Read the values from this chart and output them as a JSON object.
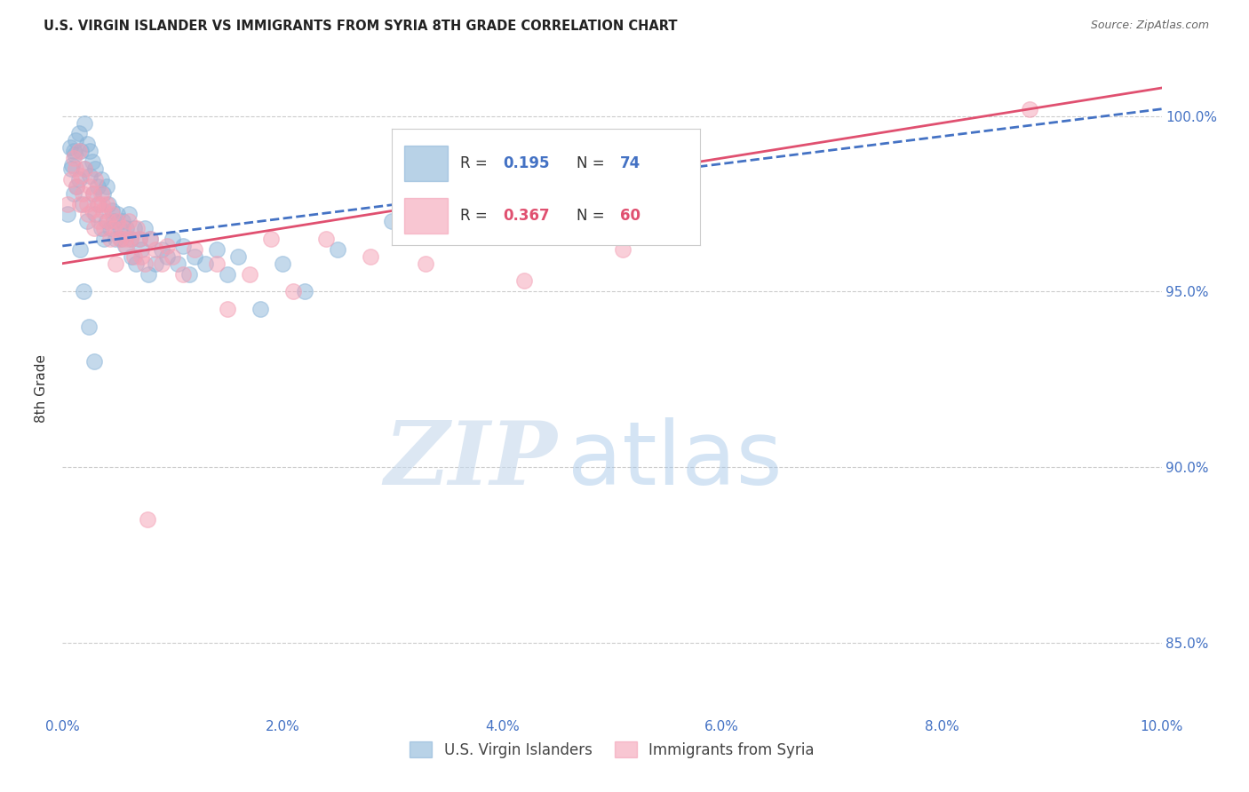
{
  "title": "U.S. VIRGIN ISLANDER VS IMMIGRANTS FROM SYRIA 8TH GRADE CORRELATION CHART",
  "source": "Source: ZipAtlas.com",
  "ylabel": "8th Grade",
  "xlim": [
    0.0,
    10.0
  ],
  "ylim": [
    83.0,
    101.5
  ],
  "yticks": [
    85.0,
    90.0,
    95.0,
    100.0
  ],
  "xticks": [
    0.0,
    2.0,
    4.0,
    6.0,
    8.0,
    10.0
  ],
  "blue_R": 0.195,
  "blue_N": 74,
  "pink_R": 0.367,
  "pink_N": 60,
  "blue_color": "#8ab4d8",
  "pink_color": "#f4a0b5",
  "blue_line_color": "#4472c4",
  "pink_line_color": "#e05070",
  "legend_label_blue": "U.S. Virgin Islanders",
  "legend_label_pink": "Immigrants from Syria",
  "watermark_zip": "ZIP",
  "watermark_atlas": "atlas",
  "blue_scatter_x": [
    0.05,
    0.08,
    0.1,
    0.1,
    0.12,
    0.13,
    0.15,
    0.15,
    0.17,
    0.18,
    0.2,
    0.2,
    0.22,
    0.22,
    0.25,
    0.25,
    0.27,
    0.28,
    0.3,
    0.3,
    0.32,
    0.33,
    0.35,
    0.35,
    0.37,
    0.38,
    0.4,
    0.4,
    0.42,
    0.43,
    0.45,
    0.47,
    0.48,
    0.5,
    0.52,
    0.53,
    0.55,
    0.57,
    0.58,
    0.6,
    0.62,
    0.63,
    0.65,
    0.67,
    0.7,
    0.72,
    0.75,
    0.78,
    0.8,
    0.85,
    0.9,
    0.95,
    1.0,
    1.05,
    1.1,
    1.15,
    1.2,
    1.3,
    1.4,
    1.5,
    1.6,
    1.8,
    2.0,
    2.2,
    2.5,
    3.0,
    5.2,
    0.07,
    0.09,
    0.11,
    0.16,
    0.19,
    0.24,
    0.29
  ],
  "blue_scatter_y": [
    97.2,
    98.5,
    99.0,
    97.8,
    99.3,
    98.0,
    99.5,
    98.2,
    99.0,
    97.5,
    99.8,
    98.5,
    99.2,
    97.0,
    99.0,
    98.3,
    98.7,
    97.8,
    98.5,
    97.2,
    98.0,
    97.5,
    98.2,
    96.8,
    97.8,
    96.5,
    98.0,
    97.0,
    97.5,
    96.8,
    97.3,
    97.0,
    96.5,
    97.2,
    96.8,
    96.5,
    97.0,
    96.3,
    96.8,
    97.2,
    96.5,
    96.0,
    96.8,
    95.8,
    96.5,
    96.2,
    96.8,
    95.5,
    96.5,
    95.8,
    96.2,
    96.0,
    96.5,
    95.8,
    96.3,
    95.5,
    96.0,
    95.8,
    96.2,
    95.5,
    96.0,
    94.5,
    95.8,
    95.0,
    96.2,
    97.0,
    97.5,
    99.1,
    98.6,
    98.9,
    96.2,
    95.0,
    94.0,
    93.0
  ],
  "pink_scatter_x": [
    0.05,
    0.08,
    0.1,
    0.12,
    0.15,
    0.17,
    0.18,
    0.2,
    0.22,
    0.25,
    0.27,
    0.28,
    0.3,
    0.32,
    0.33,
    0.35,
    0.37,
    0.38,
    0.4,
    0.42,
    0.43,
    0.45,
    0.47,
    0.5,
    0.52,
    0.55,
    0.58,
    0.6,
    0.62,
    0.65,
    0.68,
    0.7,
    0.72,
    0.75,
    0.8,
    0.85,
    0.9,
    0.95,
    1.0,
    1.1,
    1.2,
    1.4,
    1.5,
    1.7,
    1.9,
    2.1,
    2.4,
    2.8,
    3.3,
    4.2,
    5.1,
    8.8,
    0.13,
    0.16,
    0.23,
    0.29,
    0.36,
    0.48,
    0.57,
    0.77
  ],
  "pink_scatter_y": [
    97.5,
    98.2,
    98.8,
    98.5,
    99.0,
    98.3,
    97.8,
    98.5,
    97.5,
    98.0,
    97.3,
    97.8,
    98.2,
    97.5,
    97.0,
    97.8,
    97.3,
    96.8,
    97.5,
    97.0,
    96.5,
    97.2,
    96.8,
    97.0,
    96.5,
    96.8,
    96.3,
    97.0,
    96.5,
    96.0,
    96.8,
    96.5,
    96.0,
    95.8,
    96.5,
    96.2,
    95.8,
    96.3,
    96.0,
    95.5,
    96.2,
    95.8,
    94.5,
    95.5,
    96.5,
    95.0,
    96.5,
    96.0,
    95.8,
    95.3,
    96.2,
    100.2,
    98.0,
    97.5,
    97.2,
    96.8,
    97.5,
    95.8,
    96.5,
    88.5
  ],
  "blue_line_x0": 0.0,
  "blue_line_y0": 96.3,
  "blue_line_x1": 10.0,
  "blue_line_y1": 100.2,
  "pink_line_x0": 0.0,
  "pink_line_y0": 95.8,
  "pink_line_x1": 10.0,
  "pink_line_y1": 100.8
}
